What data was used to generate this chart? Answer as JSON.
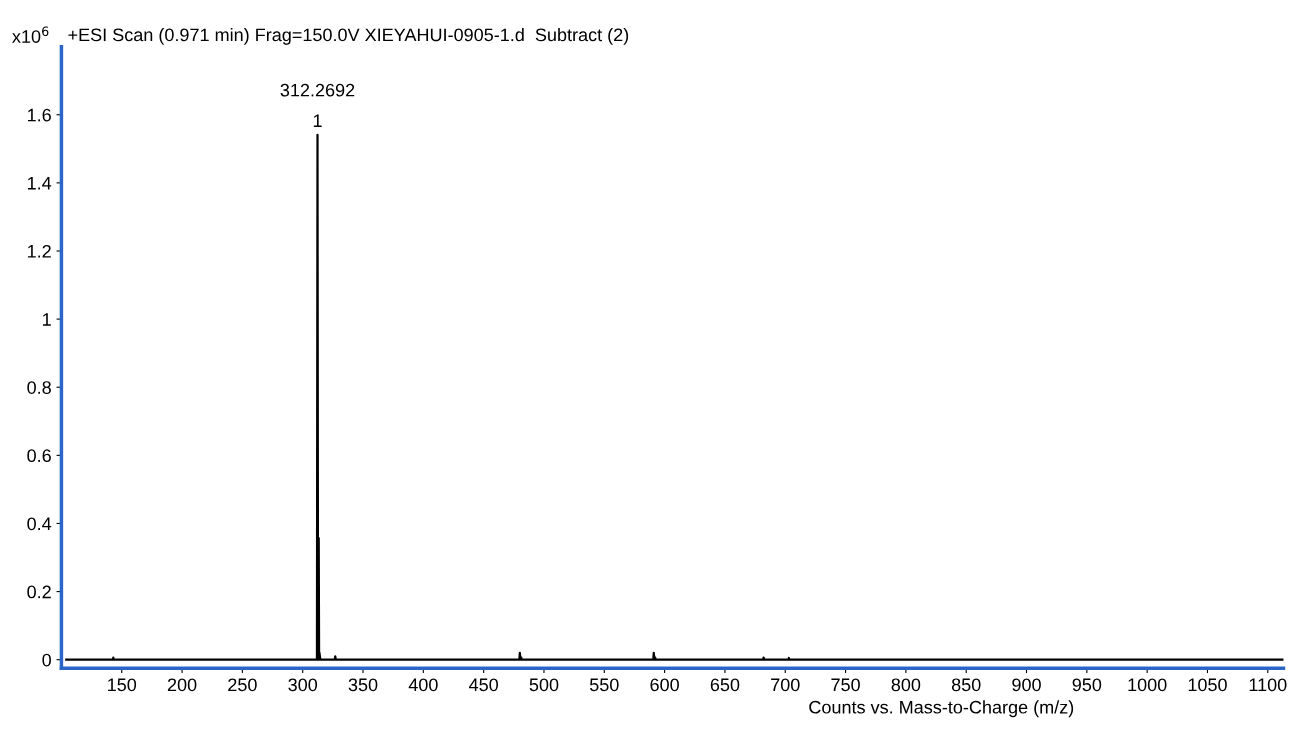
{
  "chart_data": {
    "type": "line",
    "title": "+ESI Scan (0.971 min) Frag=150.0V XIEYAHUI-0905-1.d  Subtract (2)",
    "xlabel": "Counts vs. Mass-to-Charge (m/z)",
    "ylabel": "x10$^{6}$",
    "series": [
      {
        "color": "#000000",
        "x": [
          104,
          142.6,
          143,
          143.4,
          311.8,
          312.27,
          312.7,
          313.0,
          313.27,
          313.6,
          313.9,
          314.27,
          314.6,
          326.6,
          327,
          327.4,
          479.6,
          480,
          480.4,
          480.8,
          481.2,
          481.6,
          590.6,
          591,
          591.4,
          591.8,
          592.2,
          592.6,
          681.6,
          682,
          682.4,
          682.8,
          702.6,
          703,
          703.4,
          1113
        ],
        "values": [
          0,
          0,
          0.006,
          0,
          0,
          1.541,
          0,
          0,
          0.357,
          0,
          0.02,
          0.01,
          0,
          0,
          0.01,
          0,
          0,
          0.02,
          0.006,
          0,
          0.006,
          0,
          0,
          0.02,
          0.006,
          0,
          0.006,
          0,
          0,
          0.006,
          0.004,
          0,
          0,
          0.005,
          0,
          0
        ]
      }
    ],
    "annotations": [
      {
        "text": "312.2692",
        "x": 312.27,
        "y": 1.541
      },
      {
        "text": "1",
        "x": 312.27,
        "y": 1.541
      }
    ],
    "xlim": [
      100,
      1113
    ],
    "ylim": [
      -0.025,
      1.8
    ],
    "xticks": [
      150,
      200,
      250,
      300,
      350,
      400,
      450,
      500,
      550,
      600,
      650,
      700,
      750,
      800,
      850,
      900,
      950,
      1000,
      1050,
      1100
    ],
    "yticks": [
      0,
      0.2,
      0.4,
      0.6,
      0.8,
      1,
      1.2,
      1.4,
      1.6
    ],
    "grid": false,
    "legend": false,
    "marker": "none",
    "line_style": "solid"
  }
}
